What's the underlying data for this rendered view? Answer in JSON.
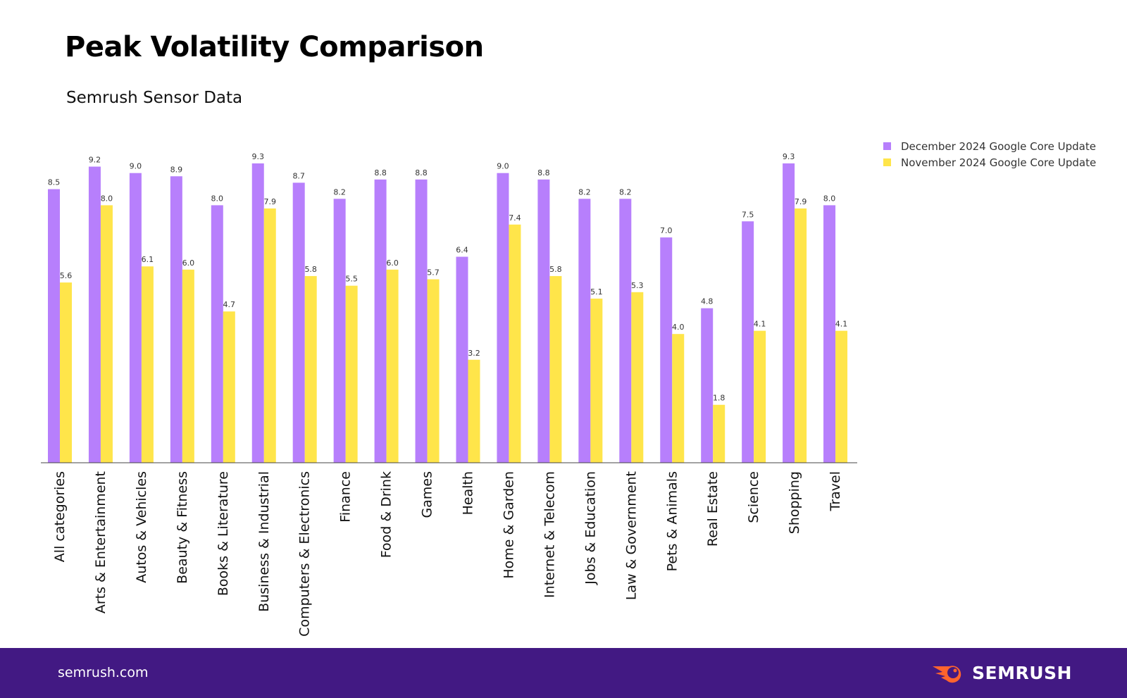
{
  "title": "Peak Volatility Comparison",
  "subtitle": "Semrush Sensor Data",
  "footer": {
    "site": "semrush.com",
    "logo_text": "SEMRUSH"
  },
  "colors": {
    "december": "#b77ffc",
    "november": "#ffe54a",
    "footer": "#421983",
    "logo_flame": "#ff642d"
  },
  "chart_data": {
    "type": "bar",
    "title": "Peak Volatility Comparison",
    "subtitle": "Semrush Sensor Data",
    "xlabel": "",
    "ylabel": "",
    "ylim": [
      0,
      9.3
    ],
    "grid": false,
    "legend_position": "top-right",
    "categories": [
      "All categories",
      "Arts & Entertainment",
      "Autos & Vehicles",
      "Beauty & Fitness",
      "Books & Literature",
      "Business & Industrial",
      "Computers & Electronics",
      "Finance",
      "Food & Drink",
      "Games",
      "Health",
      "Home & Garden",
      "Internet & Telecom",
      "Jobs & Education",
      "Law & Government",
      "Pets & Animals",
      "Real Estate",
      "Science",
      "Shopping",
      "Travel"
    ],
    "series": [
      {
        "name": "December 2024 Google Core Update",
        "color": "#b77ffc",
        "values": [
          8.5,
          9.2,
          9.0,
          8.9,
          8.0,
          9.3,
          8.7,
          8.2,
          8.8,
          8.8,
          6.4,
          9.0,
          8.8,
          8.2,
          8.2,
          7.0,
          4.8,
          7.5,
          9.3,
          8.0
        ]
      },
      {
        "name": "November 2024 Google Core Update",
        "color": "#ffe54a",
        "values": [
          5.6,
          8.0,
          6.1,
          6.0,
          4.7,
          7.9,
          5.8,
          5.5,
          6.0,
          5.7,
          3.2,
          7.4,
          5.8,
          5.1,
          5.3,
          4.0,
          1.8,
          4.1,
          7.9,
          4.1
        ]
      }
    ]
  }
}
